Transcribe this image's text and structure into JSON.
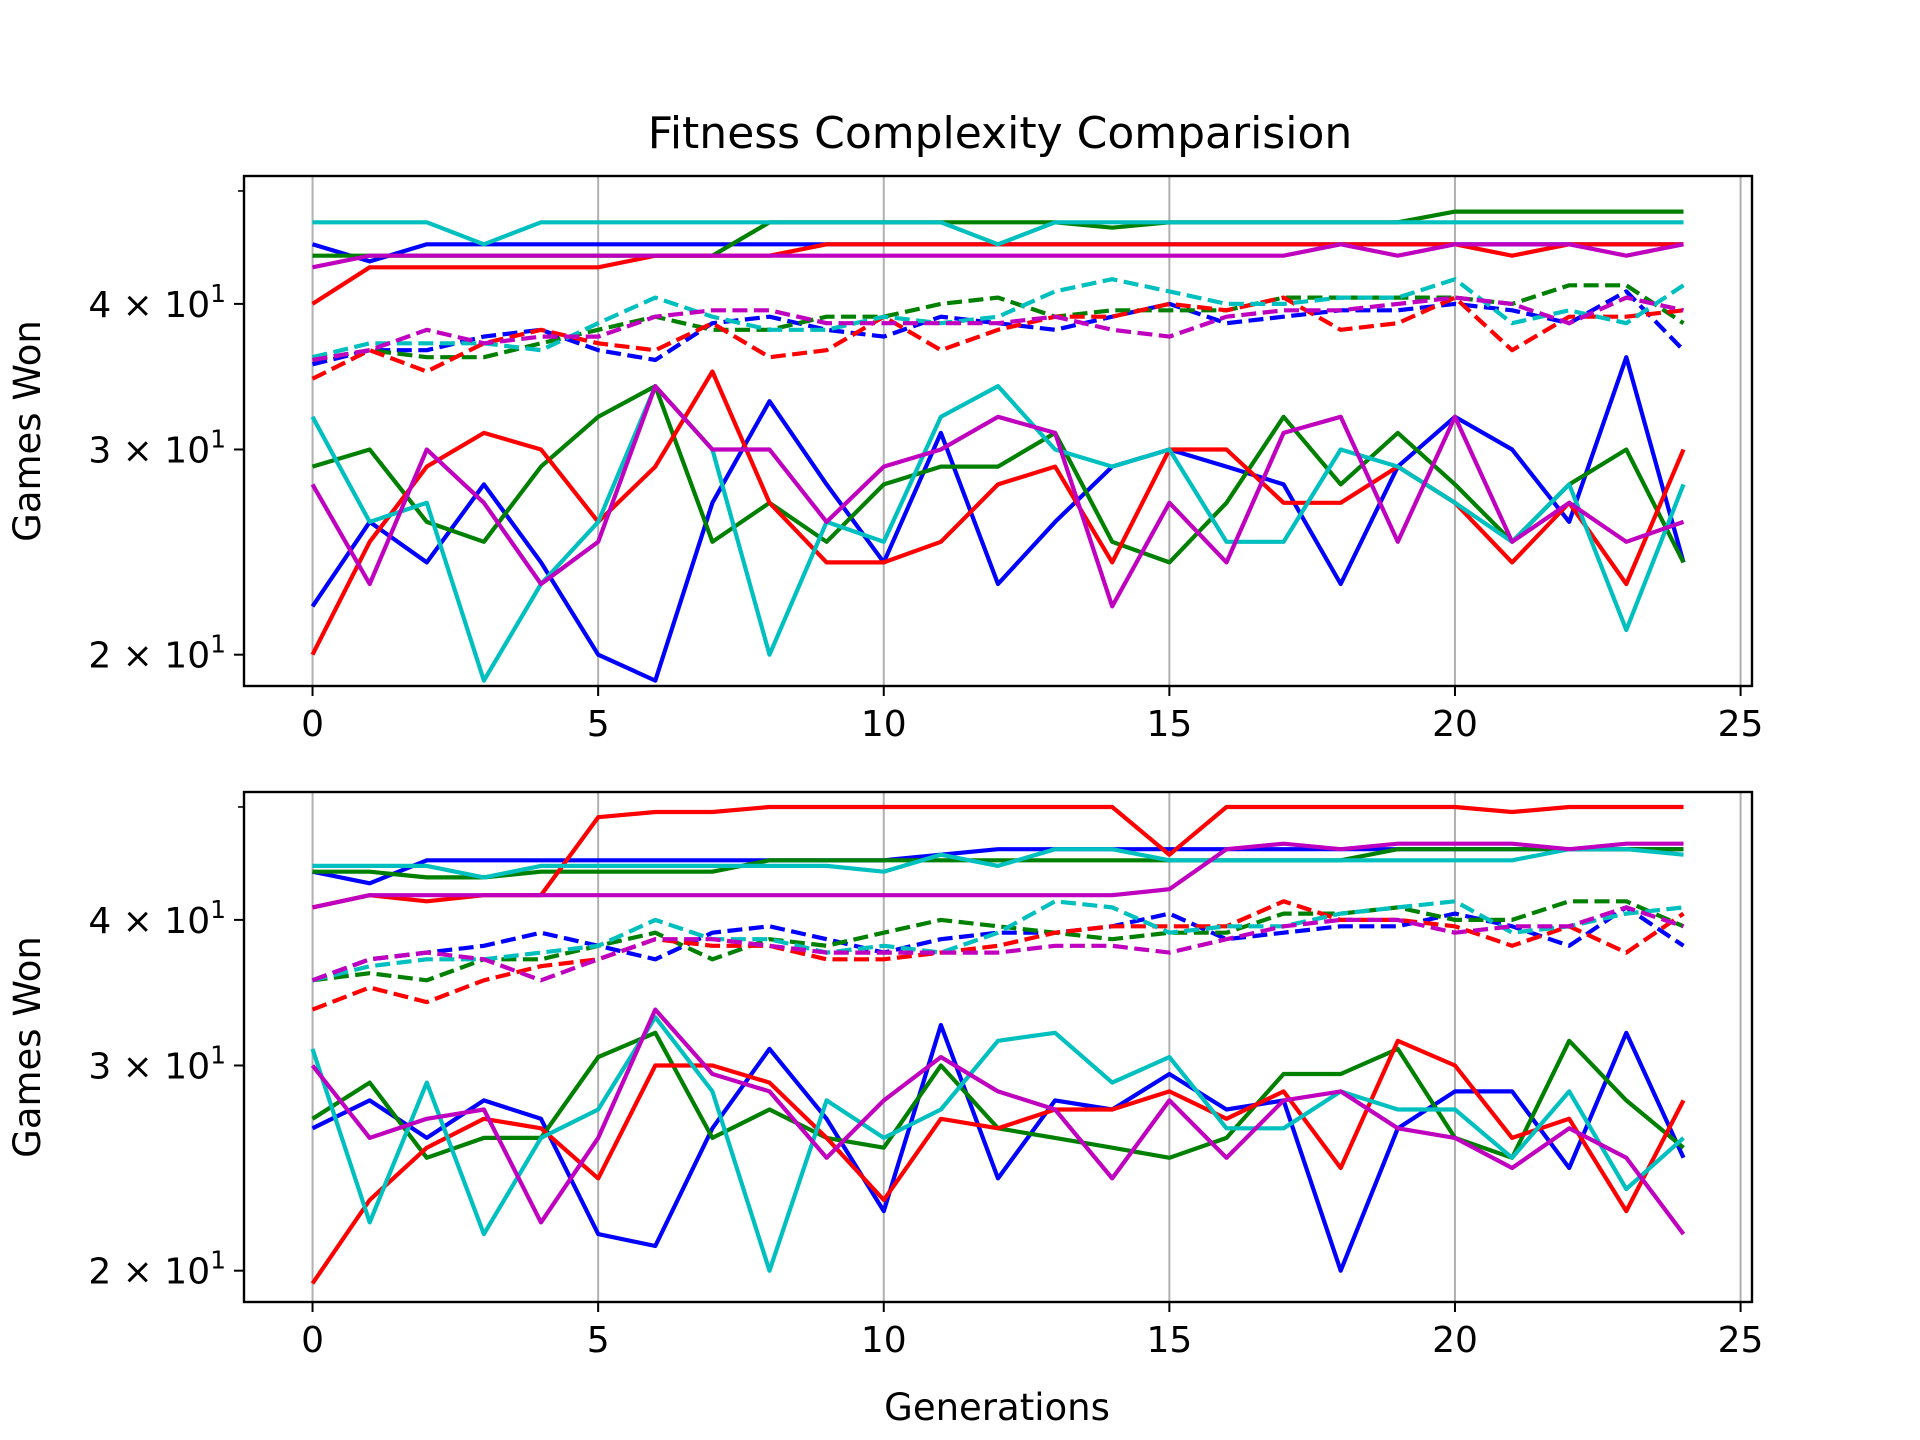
{
  "figure": {
    "title": "Fitness Complexity Comparision",
    "xlabel": "Generations"
  },
  "chart_data": [
    {
      "type": "line",
      "title": "Fitness Complexity Comparision",
      "xlabel": "",
      "ylabel": "Games Won",
      "yscale": "log",
      "xlim": [
        -1.2,
        25.2
      ],
      "ylim": [
        18.8,
        51.5
      ],
      "xticks": [
        0,
        5,
        10,
        15,
        20,
        25
      ],
      "xticklabels": [
        "0",
        "5",
        "10",
        "15",
        "20",
        "25"
      ],
      "yticks": [
        20,
        30,
        40
      ],
      "yticklabels": [
        {
          "base": "2 × 10",
          "exp": "1"
        },
        {
          "base": "3 × 10",
          "exp": "1"
        },
        {
          "base": "4 × 10",
          "exp": "1"
        }
      ],
      "grid": "x",
      "legend": "none",
      "series": [
        {
          "color": "#0000ff",
          "style": "solid",
          "values": [
            45,
            43.5,
            45,
            45,
            45,
            45,
            45,
            45,
            45,
            45,
            45,
            45,
            45,
            45,
            45,
            45,
            45,
            45,
            45,
            45,
            45,
            45,
            45,
            45,
            45
          ]
        },
        {
          "color": "#008000",
          "style": "solid",
          "values": [
            44,
            44,
            44,
            44,
            44,
            44,
            44,
            44,
            47,
            47,
            47,
            47,
            47,
            47,
            46.5,
            47,
            47,
            47,
            47,
            47,
            48,
            48,
            48,
            48,
            48
          ]
        },
        {
          "color": "#ff0000",
          "style": "solid",
          "values": [
            40,
            43,
            43,
            43,
            43,
            43,
            44,
            44,
            44,
            45,
            45,
            45,
            45,
            45,
            45,
            45,
            45,
            45,
            45,
            45,
            45,
            44,
            45,
            45,
            45
          ]
        },
        {
          "color": "#00bfbf",
          "style": "solid",
          "values": [
            47,
            47,
            47,
            45,
            47,
            47,
            47,
            47,
            47,
            47,
            47,
            47,
            45,
            47,
            47,
            47,
            47,
            47,
            47,
            47,
            47,
            47,
            47,
            47,
            47
          ]
        },
        {
          "color": "#bf00bf",
          "style": "solid",
          "values": [
            43,
            44,
            44,
            44,
            44,
            44,
            44,
            44,
            44,
            44,
            44,
            44,
            44,
            44,
            44,
            44,
            44,
            44,
            45,
            44,
            45,
            45,
            45,
            44,
            45
          ]
        },
        {
          "color": "#0000ff",
          "style": "dashed",
          "values": [
            35.5,
            36.5,
            36.5,
            37.5,
            38,
            36.5,
            35.8,
            38.5,
            39,
            38,
            37.5,
            39,
            38.5,
            38,
            39,
            40,
            38.5,
            39,
            39.5,
            39.5,
            40,
            39.5,
            38.5,
            41,
            36.5
          ]
        },
        {
          "color": "#008000",
          "style": "dashed",
          "values": [
            35.8,
            36.5,
            36,
            36,
            37,
            38,
            39,
            38,
            38,
            39,
            39,
            40,
            40.5,
            39,
            39.5,
            39.5,
            39.5,
            40.5,
            40.5,
            40.5,
            40.5,
            40,
            41.5,
            41.5,
            38.5
          ]
        },
        {
          "color": "#ff0000",
          "style": "dashed",
          "values": [
            34.5,
            36.5,
            35,
            37,
            38,
            37,
            36.5,
            38.5,
            36,
            36.5,
            39,
            36.5,
            38,
            39,
            39,
            40,
            39.5,
            40.5,
            38,
            38.5,
            40.5,
            36.5,
            39,
            39,
            39.5
          ]
        },
        {
          "color": "#00bfbf",
          "style": "dashed",
          "values": [
            36,
            37,
            37,
            37,
            36.5,
            38.5,
            40.5,
            39,
            38,
            38,
            39,
            38.5,
            39,
            41,
            42,
            41,
            40,
            40,
            40.5,
            40.5,
            42,
            38.5,
            39.5,
            38.5,
            41.5
          ]
        },
        {
          "color": "#bf00bf",
          "style": "dashed",
          "values": [
            35.8,
            36.5,
            38,
            37,
            37.5,
            37.5,
            39,
            39.5,
            39.5,
            38.5,
            38.5,
            38.5,
            38.5,
            39,
            38,
            37.5,
            39,
            39.5,
            39.5,
            40,
            40.5,
            40,
            38.5,
            40.5,
            39.5
          ]
        },
        {
          "color": "#0000ff",
          "style": "solid",
          "values": [
            22,
            26,
            24,
            28,
            24,
            20,
            19,
            27,
            33,
            28,
            24,
            31,
            23,
            26,
            29,
            30,
            29,
            28,
            23,
            29,
            32,
            30,
            26,
            36,
            24
          ]
        },
        {
          "color": "#008000",
          "style": "solid",
          "values": [
            29,
            30,
            26,
            25,
            29,
            32,
            34,
            25,
            27,
            25,
            28,
            29,
            29,
            31,
            25,
            24,
            27,
            32,
            28,
            31,
            28,
            25,
            28,
            30,
            24
          ]
        },
        {
          "color": "#ff0000",
          "style": "solid",
          "values": [
            20,
            25,
            29,
            31,
            30,
            26,
            29,
            35,
            27,
            24,
            24,
            25,
            28,
            29,
            24,
            30,
            30,
            27,
            27,
            29,
            27,
            24,
            27,
            23,
            30
          ]
        },
        {
          "color": "#00bfbf",
          "style": "solid",
          "values": [
            32,
            26,
            27,
            19,
            23,
            26,
            34,
            30,
            20,
            26,
            25,
            32,
            34,
            30,
            29,
            30,
            25,
            25,
            30,
            29,
            27,
            25,
            28,
            21,
            28
          ]
        },
        {
          "color": "#bf00bf",
          "style": "solid",
          "values": [
            28,
            23,
            30,
            27,
            23,
            25,
            34,
            30,
            30,
            26,
            29,
            30,
            32,
            31,
            22,
            27,
            24,
            31,
            32,
            25,
            32,
            25,
            27,
            25,
            26
          ]
        }
      ]
    },
    {
      "type": "line",
      "title": "",
      "xlabel": "Generations",
      "ylabel": "Games Won",
      "yscale": "log",
      "xlim": [
        -1.2,
        25.2
      ],
      "ylim": [
        18.8,
        51.5
      ],
      "xticks": [
        0,
        5,
        10,
        15,
        20,
        25
      ],
      "xticklabels": [
        "0",
        "5",
        "10",
        "15",
        "20",
        "25"
      ],
      "yticks": [
        20,
        30,
        40
      ],
      "yticklabels": [
        {
          "base": "2 × 10",
          "exp": "1"
        },
        {
          "base": "3 × 10",
          "exp": "1"
        },
        {
          "base": "4 × 10",
          "exp": "1"
        }
      ],
      "grid": "x",
      "legend": "none",
      "series": [
        {
          "color": "#0000ff",
          "style": "solid",
          "values": [
            44,
            43,
            45,
            45,
            45,
            45,
            45,
            45,
            45,
            45,
            45,
            45.5,
            46,
            46,
            46,
            46,
            46,
            46,
            46,
            46,
            46,
            46,
            46,
            46,
            46
          ]
        },
        {
          "color": "#008000",
          "style": "solid",
          "values": [
            44,
            44,
            43.5,
            43.5,
            44,
            44,
            44,
            44,
            45,
            45,
            45,
            45,
            45,
            45,
            45,
            45,
            45,
            45,
            45,
            46,
            46,
            46,
            46,
            46,
            46
          ]
        },
        {
          "color": "#ff0000",
          "style": "solid",
          "values": [
            41,
            42,
            41.5,
            42,
            42,
            49,
            49.5,
            49.5,
            50,
            50,
            50,
            50,
            50,
            50,
            50,
            45.5,
            50,
            50,
            50,
            50,
            50,
            49.5,
            50,
            50,
            50
          ]
        },
        {
          "color": "#00bfbf",
          "style": "solid",
          "values": [
            44.5,
            44.5,
            44.5,
            43.5,
            44.5,
            44.5,
            44.5,
            44.5,
            44.5,
            44.5,
            44,
            45.5,
            44.5,
            46,
            46,
            45,
            45,
            45,
            45,
            45,
            45,
            45,
            46,
            46,
            45.5
          ]
        },
        {
          "color": "#bf00bf",
          "style": "solid",
          "values": [
            41,
            42,
            42,
            42,
            42,
            42,
            42,
            42,
            42,
            42,
            42,
            42,
            42,
            42,
            42,
            42.5,
            46,
            46.5,
            46,
            46.5,
            46.5,
            46.5,
            46,
            46.5,
            46.5
          ]
        },
        {
          "color": "#0000ff",
          "style": "dashed",
          "values": [
            35.5,
            37,
            37.5,
            38,
            39,
            38,
            37,
            39,
            39.5,
            38.5,
            37.5,
            38.5,
            39,
            39,
            39.5,
            40.5,
            38.5,
            39,
            39.5,
            39.5,
            40.5,
            39.5,
            38,
            41,
            38
          ]
        },
        {
          "color": "#008000",
          "style": "dashed",
          "values": [
            35.5,
            36,
            35.5,
            37,
            37,
            38,
            39,
            37,
            38.5,
            38,
            39,
            40,
            39.5,
            39,
            38.5,
            39,
            39,
            40.5,
            40.5,
            41,
            40,
            40,
            41.5,
            41.5,
            39.5
          ]
        },
        {
          "color": "#ff0000",
          "style": "dashed",
          "values": [
            33.5,
            35,
            34,
            35.5,
            36.5,
            37,
            38.5,
            38,
            38,
            37,
            37,
            37.5,
            38,
            39,
            39.5,
            39.5,
            39.5,
            41.5,
            40,
            40,
            39.5,
            38,
            39.5,
            37.5,
            40.5
          ]
        },
        {
          "color": "#00bfbf",
          "style": "dashed",
          "values": [
            35.5,
            36.5,
            37,
            37,
            37.5,
            38,
            40,
            38.5,
            38.5,
            37.5,
            38,
            37.5,
            39,
            41.5,
            41,
            39,
            39.5,
            39.5,
            40.5,
            41,
            41.5,
            39,
            39.5,
            40.5,
            41
          ]
        },
        {
          "color": "#bf00bf",
          "style": "dashed",
          "values": [
            35.5,
            37,
            37.5,
            37,
            35.5,
            37,
            38.5,
            38.5,
            38,
            37.5,
            37.5,
            37.5,
            37.5,
            38,
            38,
            37.5,
            38.5,
            39.5,
            40,
            40,
            39,
            39.5,
            39.5,
            41,
            39.5
          ]
        },
        {
          "color": "#0000ff",
          "style": "solid",
          "values": [
            26.5,
            28,
            26,
            28,
            27,
            21.5,
            21,
            26.5,
            31,
            27,
            22.5,
            32.5,
            24,
            28,
            27.5,
            29.5,
            27.5,
            28,
            20,
            26.5,
            28.5,
            28.5,
            24.5,
            32,
            25
          ]
        },
        {
          "color": "#008000",
          "style": "solid",
          "values": [
            27,
            29,
            25,
            26,
            26,
            30.5,
            32,
            26,
            27.5,
            26,
            25.5,
            30,
            26.5,
            26,
            25.5,
            25,
            26,
            29.5,
            29.5,
            31,
            26,
            25,
            31.5,
            28,
            25.5
          ]
        },
        {
          "color": "#ff0000",
          "style": "solid",
          "values": [
            19.5,
            23,
            25.5,
            27,
            26.5,
            24,
            30,
            30,
            29,
            26,
            23,
            27,
            26.5,
            27.5,
            27.5,
            28.5,
            27,
            28.5,
            24.5,
            31.5,
            30,
            26,
            27,
            22.5,
            28
          ]
        },
        {
          "color": "#00bfbf",
          "style": "solid",
          "values": [
            31,
            22,
            29,
            21.5,
            26,
            27.5,
            33,
            28.5,
            20,
            28,
            26,
            27.5,
            31.5,
            32,
            29,
            30.5,
            26.5,
            26.5,
            28.5,
            27.5,
            27.5,
            25,
            28.5,
            23.5,
            26
          ]
        },
        {
          "color": "#bf00bf",
          "style": "solid",
          "values": [
            30,
            26,
            27,
            27.5,
            22,
            26,
            33.5,
            29.5,
            28.5,
            25,
            28,
            30.5,
            28.5,
            27.5,
            24,
            28,
            25,
            28,
            28.5,
            26.5,
            26,
            24.5,
            26.5,
            25,
            21.5
          ]
        }
      ]
    }
  ]
}
